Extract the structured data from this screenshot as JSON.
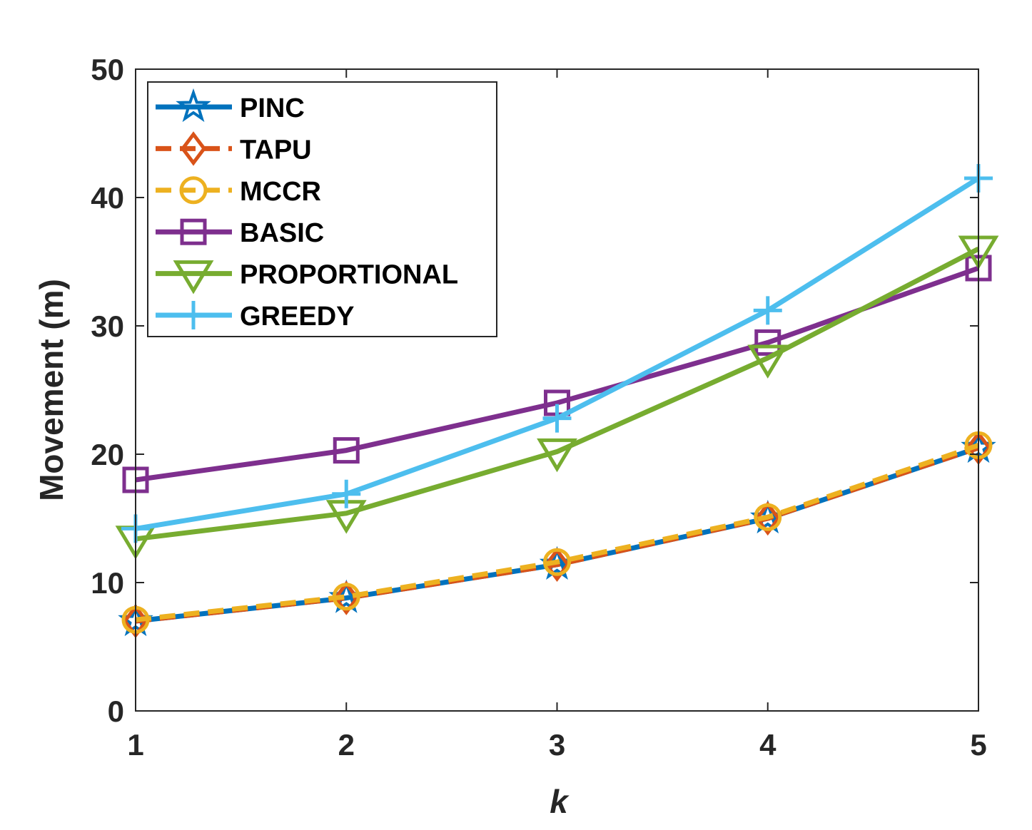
{
  "chart_data": {
    "type": "line",
    "title": "",
    "xlabel": "k",
    "ylabel": "Movement (m)",
    "x": [
      1,
      2,
      3,
      4,
      5
    ],
    "xlim": [
      1,
      5
    ],
    "ylim": [
      0,
      50
    ],
    "xticks": [
      "1",
      "2",
      "3",
      "4",
      "5"
    ],
    "yticks": [
      "0",
      "10",
      "20",
      "30",
      "40",
      "50"
    ],
    "grid": false,
    "legend_position": "top-left",
    "series": [
      {
        "name": "PINC",
        "values": [
          7.0,
          8.8,
          11.4,
          15.0,
          20.5
        ],
        "color": "#0072BD",
        "marker": "star",
        "dash": "solid"
      },
      {
        "name": "TAPU",
        "values": [
          7.0,
          8.8,
          11.4,
          15.0,
          20.5
        ],
        "color": "#D95319",
        "marker": "diamond",
        "dash": "dashed"
      },
      {
        "name": "MCCR",
        "values": [
          7.1,
          8.9,
          11.6,
          15.1,
          20.7
        ],
        "color": "#EDB120",
        "marker": "circle",
        "dash": "dashed"
      },
      {
        "name": "BASIC",
        "values": [
          18.0,
          20.3,
          24.0,
          28.7,
          34.5
        ],
        "color": "#7E2F8E",
        "marker": "square",
        "dash": "solid"
      },
      {
        "name": "PROPORTIONAL",
        "values": [
          13.4,
          15.4,
          20.2,
          27.5,
          36.0
        ],
        "color": "#77AC30",
        "marker": "triangle-down",
        "dash": "solid"
      },
      {
        "name": "GREEDY",
        "values": [
          14.2,
          16.9,
          22.8,
          31.2,
          41.5
        ],
        "color": "#4DBEEE",
        "marker": "plus",
        "dash": "solid"
      }
    ]
  }
}
